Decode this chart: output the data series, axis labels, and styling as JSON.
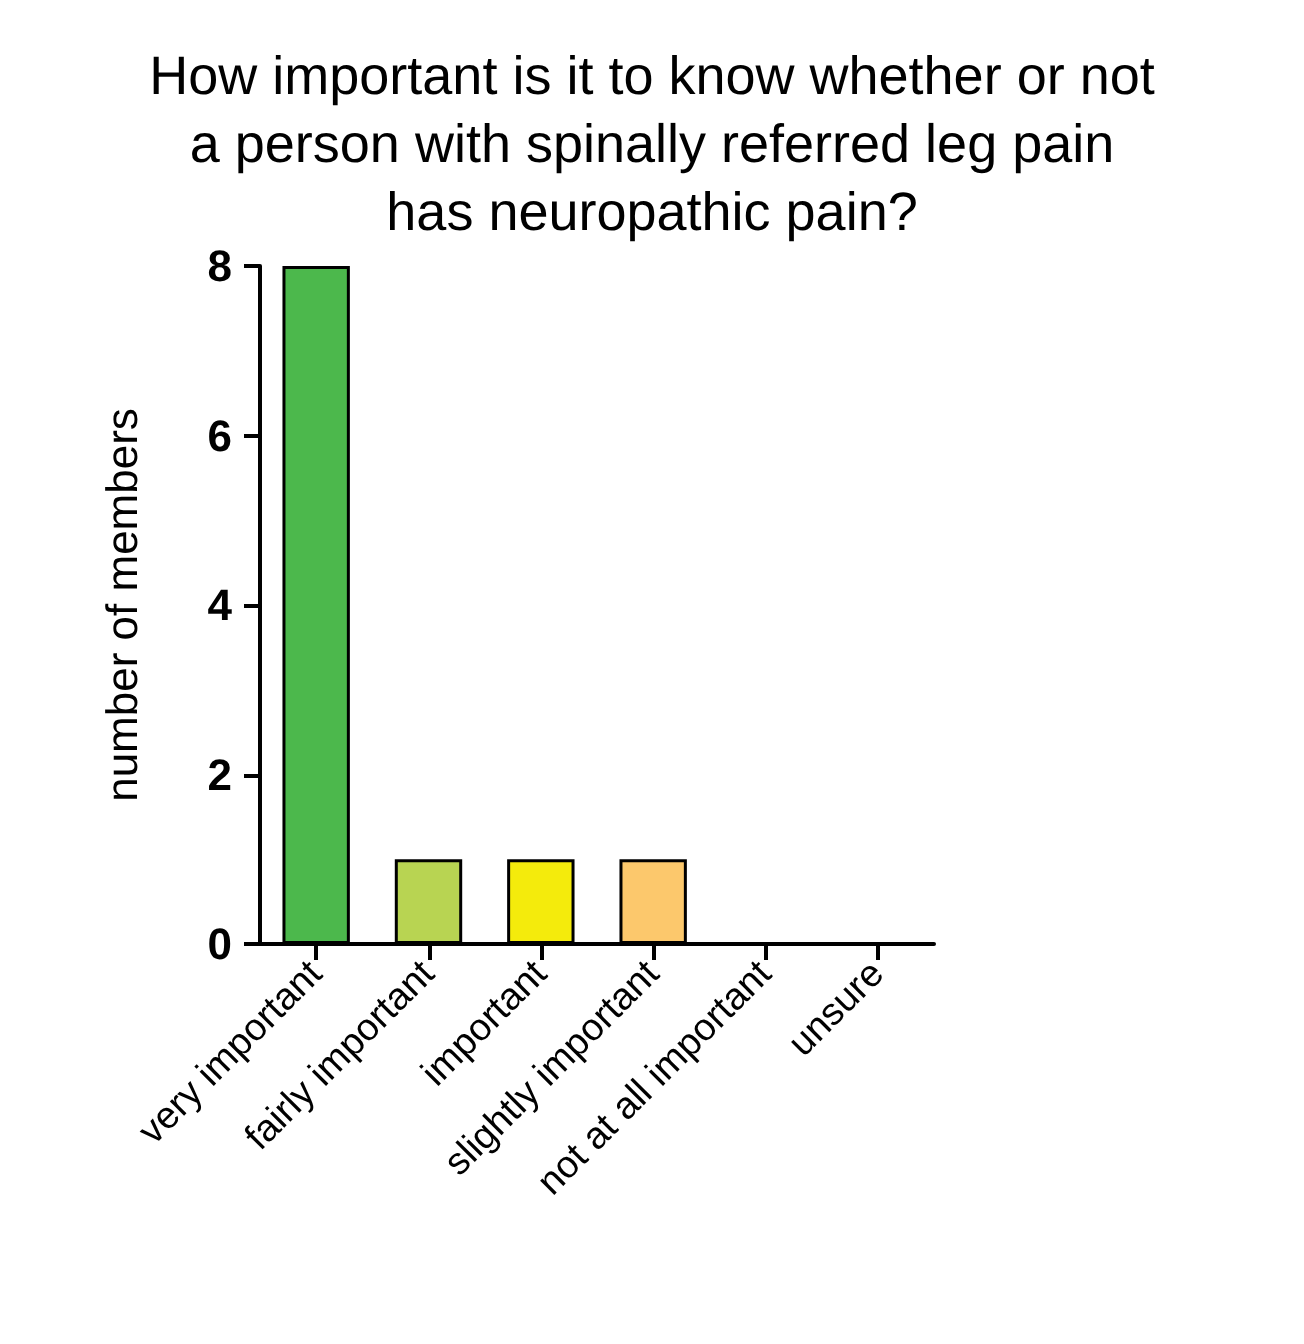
{
  "chart_data": {
    "type": "bar",
    "title": "How important is it to know whether or not\na person with spinally referred leg pain\nhas neuropathic pain?",
    "ylabel": "number of members",
    "categories": [
      "very important",
      "fairly important",
      "important",
      "slightly important",
      "not at all important",
      "unsure"
    ],
    "values": [
      8,
      1,
      1,
      1,
      0,
      0
    ],
    "colors": [
      "#4cb84c",
      "#b8d452",
      "#f4eb0c",
      "#fcc86c",
      "#000000",
      "#000000"
    ],
    "ylim": [
      0,
      8
    ],
    "yticks": [
      0,
      2,
      4,
      6,
      8
    ],
    "grid": false
  }
}
